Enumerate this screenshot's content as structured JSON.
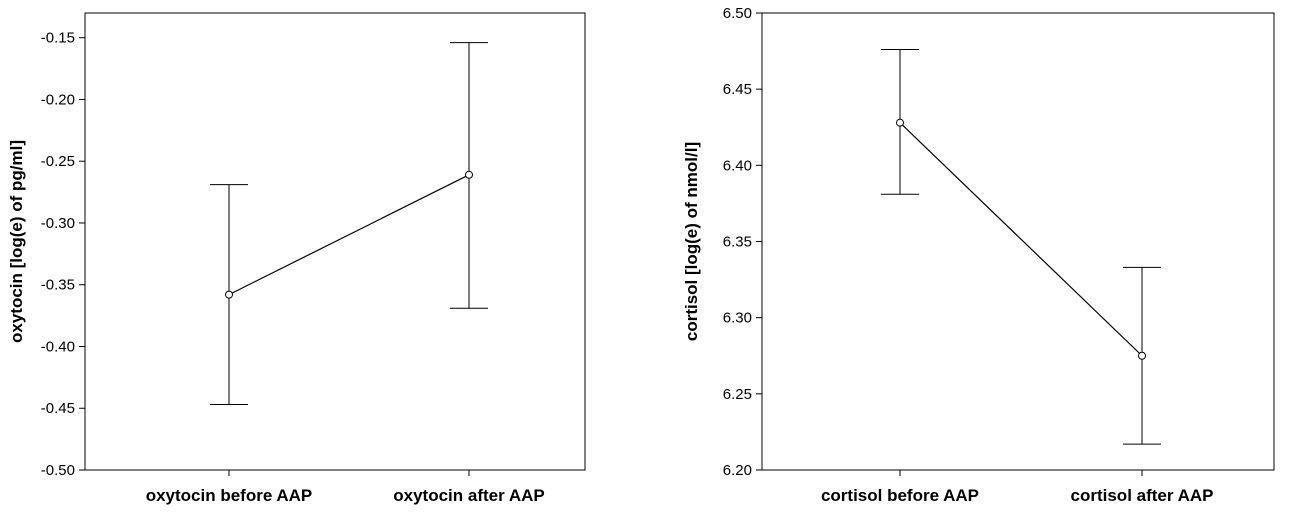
{
  "chart_data": [
    {
      "type": "line",
      "ylabel": "oxytocin [log(e) of pg/ml]",
      "xlabel": "",
      "categories": [
        "oxytocin before AAP",
        "oxytocin after AAP"
      ],
      "ylim": [
        -0.5,
        -0.13
      ],
      "yticks": [
        -0.5,
        -0.45,
        -0.4,
        -0.35,
        -0.3,
        -0.25,
        -0.2,
        -0.15
      ],
      "ytick_labels": [
        "-0.50",
        "-0.45",
        "-0.40",
        "-0.35",
        "-0.30",
        "-0.25",
        "-0.20",
        "-0.15"
      ],
      "series": [
        {
          "values": [
            -0.358,
            -0.261
          ],
          "error_low": [
            -0.447,
            -0.369
          ],
          "error_high": [
            -0.269,
            -0.154
          ]
        }
      ],
      "grid": false
    },
    {
      "type": "line",
      "ylabel": "cortisol [log(e) of nmol/l]",
      "xlabel": "",
      "categories": [
        "cortisol before AAP",
        "cortisol after AAP"
      ],
      "ylim": [
        6.2,
        6.5
      ],
      "yticks": [
        6.2,
        6.25,
        6.3,
        6.35,
        6.4,
        6.45,
        6.5
      ],
      "ytick_labels": [
        "6.20",
        "6.25",
        "6.30",
        "6.35",
        "6.40",
        "6.45",
        "6.50"
      ],
      "series": [
        {
          "values": [
            6.428,
            6.275
          ],
          "error_low": [
            6.381,
            6.217
          ],
          "error_high": [
            6.476,
            6.333
          ]
        }
      ],
      "grid": false
    }
  ]
}
